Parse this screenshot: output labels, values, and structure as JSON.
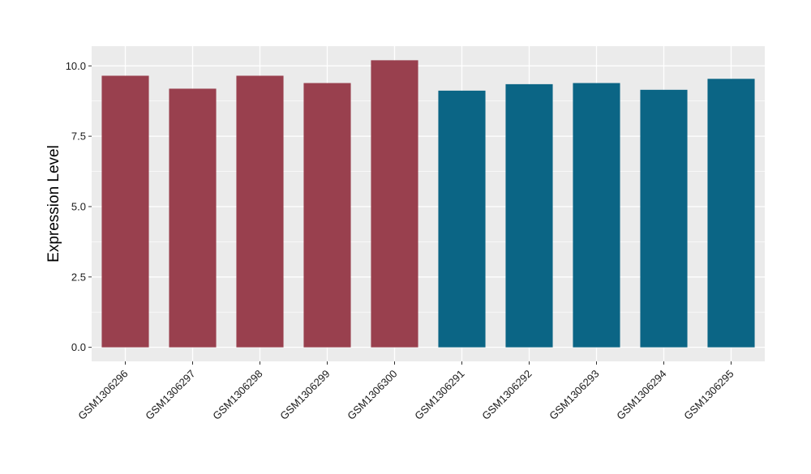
{
  "chart_data": {
    "type": "bar",
    "title": "",
    "xlabel": "",
    "ylabel": "Expression Level",
    "categories": [
      "GSM1306296",
      "GSM1306297",
      "GSM1306298",
      "GSM1306299",
      "GSM1306300",
      "GSM1306291",
      "GSM1306292",
      "GSM1306293",
      "GSM1306294",
      "GSM1306295"
    ],
    "values": [
      9.65,
      9.19,
      9.65,
      9.39,
      10.2,
      9.12,
      9.35,
      9.39,
      9.15,
      9.54
    ],
    "bar_colors": [
      "#99404e",
      "#99404e",
      "#99404e",
      "#99404e",
      "#99404e",
      "#0b6585",
      "#0b6585",
      "#0b6585",
      "#0b6585",
      "#0b6585"
    ],
    "ylim": [
      -0.5,
      10.7
    ],
    "yticks": [
      0.0,
      2.5,
      5.0,
      7.5,
      10.0
    ],
    "ytick_labels": [
      "0.0",
      "2.5",
      "5.0",
      "7.5",
      "10.0"
    ],
    "grid": true,
    "legend": false,
    "panel_background": "#ebebeb",
    "grid_color": "#ffffff"
  }
}
